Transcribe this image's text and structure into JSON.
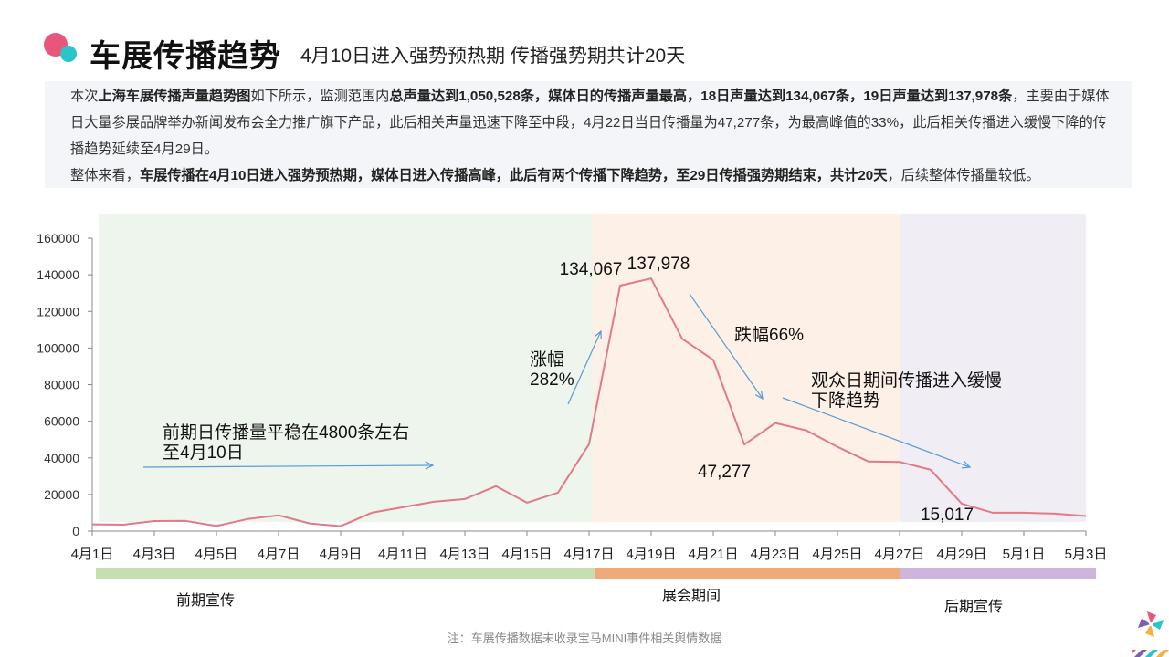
{
  "header": {
    "title": "车展传播趋势",
    "subtitle": "4月10日进入强势预热期  传播强势期共计20天"
  },
  "description": {
    "p1": [
      {
        "t": "本次",
        "b": false
      },
      {
        "t": "上海车展传播声量趋势图",
        "b": true
      },
      {
        "t": "如下所示，监测范围内",
        "b": false
      },
      {
        "t": "总声量达到1,050,528条，媒体日的传播声量最高，18日声量达到134,067条，19日声量达到137,978条",
        "b": true
      },
      {
        "t": "，主要由于媒体日大量参展品牌举办新闻发布会全力推广旗下产品，此后相关声量迅速下降至中段，4月22日当日传播量为47,277条，为最高峰值的33%，此后相关传播进入缓慢下降的传播趋势延续至4月29日。",
        "b": false
      }
    ],
    "p2": [
      {
        "t": "整体来看，",
        "b": false
      },
      {
        "t": "车展传播在4月10日进入强势预热期，媒体日进入传播高峰，此后有两个传播下降趋势，至29日传播强势期结束，共计20天",
        "b": true
      },
      {
        "t": "，后续整体传播量较低。",
        "b": false
      }
    ]
  },
  "chart_data": {
    "type": "line",
    "x": [
      "4月1日",
      "4月2日",
      "4月3日",
      "4月4日",
      "4月5日",
      "4月6日",
      "4月7日",
      "4月8日",
      "4月9日",
      "4月10日",
      "4月11日",
      "4月12日",
      "4月13日",
      "4月14日",
      "4月15日",
      "4月16日",
      "4月17日",
      "4月18日",
      "4月19日",
      "4月20日",
      "4月21日",
      "4月22日",
      "4月23日",
      "4月24日",
      "4月25日",
      "4月26日",
      "4月27日",
      "4月28日",
      "4月29日",
      "4月30日",
      "5月1日",
      "5月2日",
      "5月3日"
    ],
    "x_tick_labels": [
      "4月1日",
      "4月3日",
      "4月5日",
      "4月7日",
      "4月9日",
      "4月11日",
      "4月13日",
      "4月15日",
      "4月17日",
      "4月19日",
      "4月21日",
      "4月23日",
      "4月25日",
      "4月27日",
      "4月29日",
      "5月1日",
      "5月3日"
    ],
    "series": [
      {
        "values": [
          3700,
          3500,
          5500,
          5600,
          2800,
          6600,
          8600,
          4200,
          2700,
          10000,
          13000,
          16000,
          17500,
          24500,
          15500,
          21000,
          47500,
          134067,
          137978,
          105000,
          93500,
          47277,
          59000,
          55000,
          46000,
          38000,
          37800,
          33500,
          15017,
          10000,
          10000,
          9500,
          8200
        ]
      }
    ],
    "y_ticks": [
      0,
      20000,
      40000,
      60000,
      80000,
      100000,
      120000,
      140000,
      160000
    ],
    "ylim": [
      0,
      160000
    ],
    "grid": false,
    "line_color": "#e07a88",
    "phases": [
      {
        "name": "前期宣传",
        "start": "4月1日",
        "end": "4月17日",
        "bg": "#eef5ec",
        "bar": "#c6dfb0"
      },
      {
        "name": "展会期间",
        "start": "4月17日",
        "end": "4月27日",
        "bg": "#fdf0e6",
        "bar": "#f0aa7a"
      },
      {
        "name": "后期宣传",
        "start": "4月27日",
        "end": "5月3日",
        "bg": "#f1edf5",
        "bar": "#cdb5dc"
      }
    ],
    "data_labels": [
      {
        "text": "134,067",
        "x": "4月18日",
        "value": 134067
      },
      {
        "text": "137,978",
        "x": "4月19日",
        "value": 137978
      },
      {
        "text": "47,277",
        "x": "4月22日",
        "value": 47277
      },
      {
        "text": "15,017",
        "x": "4月29日",
        "value": 15017
      }
    ],
    "annotations": [
      {
        "lines": [
          "前期日传播量平稳在4800条左右",
          "至4月10日"
        ]
      },
      {
        "lines": [
          "涨幅",
          "282%"
        ]
      },
      {
        "lines": [
          "跌幅66%"
        ]
      },
      {
        "lines": [
          "观众日期间传播进入缓慢",
          "下降趋势"
        ]
      }
    ],
    "arrow_color": "#5b9bd5"
  },
  "footnote": "注：车展传播数据未收录宝马MINI事件相关舆情数据"
}
